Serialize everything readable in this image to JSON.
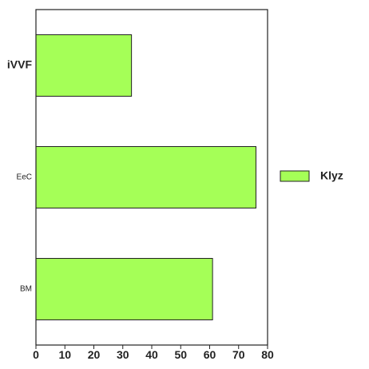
{
  "chart_data": {
    "type": "bar",
    "orientation": "horizontal",
    "categories": [
      "iVVF",
      "EeC",
      "BM"
    ],
    "series": [
      {
        "name": "Klyz",
        "values": [
          33,
          76,
          61
        ],
        "color": "#a5ff57"
      }
    ],
    "xlim": [
      0,
      80
    ],
    "xticks": [
      0,
      10,
      20,
      30,
      40,
      50,
      60,
      70,
      80
    ],
    "grid": false,
    "legend_position": "right"
  }
}
